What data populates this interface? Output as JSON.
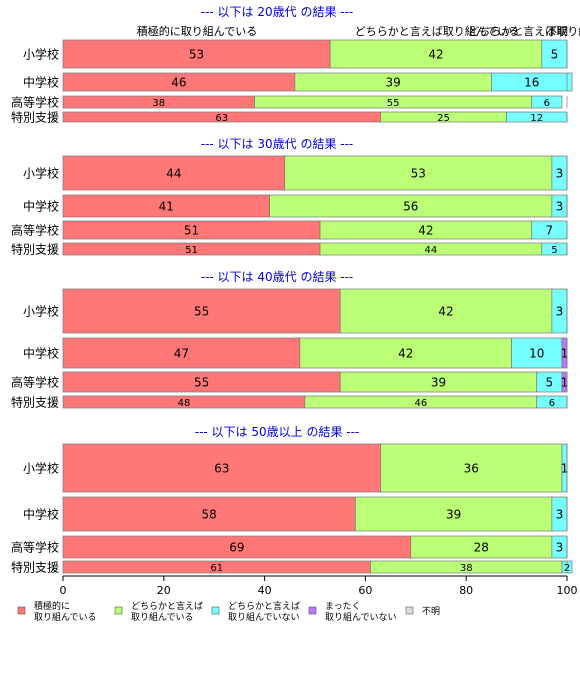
{
  "chart_data": {
    "type": "bar",
    "orientation": "horizontal",
    "stacked": true,
    "xlim": [
      0,
      100
    ],
    "x_ticks": [
      "0",
      "20",
      "40",
      "60",
      "80",
      "100"
    ],
    "legend_position": "bottom-left",
    "series": [
      {
        "name": "積極的に\n取り組んでいる",
        "color": "#ff7777"
      },
      {
        "name": "どちらかと言えば\n取り組んでいる",
        "color": "#bbff77"
      },
      {
        "name": "どちらかと言えば\n取り組んでいない",
        "color": "#77ffff"
      },
      {
        "name": "まったく\n取り組んでいない",
        "color": "#bb77ff"
      },
      {
        "name": "不明",
        "color": "#dddddd"
      }
    ],
    "top_labels": [
      "積極的に取り組んでいる",
      "どちらかと言えば取り組んでいる",
      "どちらかと言えば取り組んでいない",
      "不明"
    ],
    "panels": [
      {
        "title": "--- 以下は 20歳代 の結果 ---",
        "categories": [
          "小学校",
          "中学校",
          "高等学校",
          "特別支援"
        ],
        "values": [
          [
            53,
            42,
            5,
            0,
            0
          ],
          [
            46,
            39,
            16,
            0,
            0
          ],
          [
            38,
            55,
            6,
            0,
            0
          ],
          [
            63,
            25,
            12,
            0,
            0
          ]
        ]
      },
      {
        "title": "--- 以下は 30歳代 の結果 ---",
        "categories": [
          "小学校",
          "中学校",
          "高等学校",
          "特別支援"
        ],
        "values": [
          [
            44,
            53,
            3,
            0,
            0
          ],
          [
            41,
            56,
            3,
            0,
            0
          ],
          [
            51,
            42,
            7,
            0,
            0
          ],
          [
            51,
            44,
            5,
            0,
            0
          ]
        ]
      },
      {
        "title": "--- 以下は 40歳代 の結果 ---",
        "categories": [
          "小学校",
          "中学校",
          "高等学校",
          "特別支援"
        ],
        "values": [
          [
            55,
            42,
            3,
            0,
            0
          ],
          [
            47,
            42,
            10,
            1,
            0
          ],
          [
            55,
            39,
            5,
            1,
            0
          ],
          [
            48,
            46,
            6,
            0,
            0
          ]
        ]
      },
      {
        "title": "--- 以下は 50歳以上 の結果 ---",
        "categories": [
          "小学校",
          "中学校",
          "高等学校",
          "特別支援"
        ],
        "values": [
          [
            63,
            36,
            1,
            0,
            0
          ],
          [
            58,
            39,
            3,
            0,
            0
          ],
          [
            69,
            28,
            3,
            0,
            0
          ],
          [
            61,
            38,
            2,
            0,
            0
          ]
        ]
      }
    ]
  }
}
